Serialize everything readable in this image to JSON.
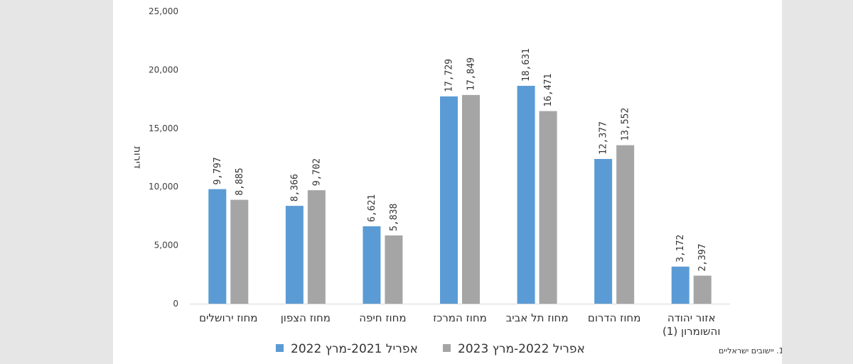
{
  "chart_data": {
    "type": "bar",
    "ylabel": "דירות",
    "ylim": [
      0,
      25000
    ],
    "yticks": [
      "0",
      "5,000",
      "10,000",
      "15,000",
      "20,000",
      "25,000"
    ],
    "ytick_values": [
      0,
      5000,
      10000,
      15000,
      20000,
      25000
    ],
    "grid": false,
    "legend_position": "bottom",
    "categories": [
      [
        "מחוז ירושלים"
      ],
      [
        "מחוז הצפון"
      ],
      [
        "מחוז חיפה"
      ],
      [
        "מחוז המרכז"
      ],
      [
        "מחוז תל אביב"
      ],
      [
        "מחוז הדרום"
      ],
      [
        "אזור יהודה",
        "והשומרון (1)"
      ]
    ],
    "series": [
      {
        "name": "אפריל 2021-מרץ 2022",
        "color": "#5b9bd5",
        "values": [
          9797,
          8366,
          6621,
          17729,
          18631,
          12377,
          3172
        ],
        "labels": [
          "9,797",
          "8,366",
          "6,621",
          "17,729",
          "18,631",
          "12,377",
          "3,172"
        ]
      },
      {
        "name": "אפריל 2022-מרץ 2023",
        "color": "#a5a5a5",
        "values": [
          8885,
          9702,
          5838,
          17849,
          16471,
          13552,
          2397
        ],
        "labels": [
          "8,885",
          "9,702",
          "5,838",
          "17,849",
          "16,471",
          "13,552",
          "2,397"
        ]
      }
    ],
    "footnote": "1. יישובים ישראליים"
  }
}
